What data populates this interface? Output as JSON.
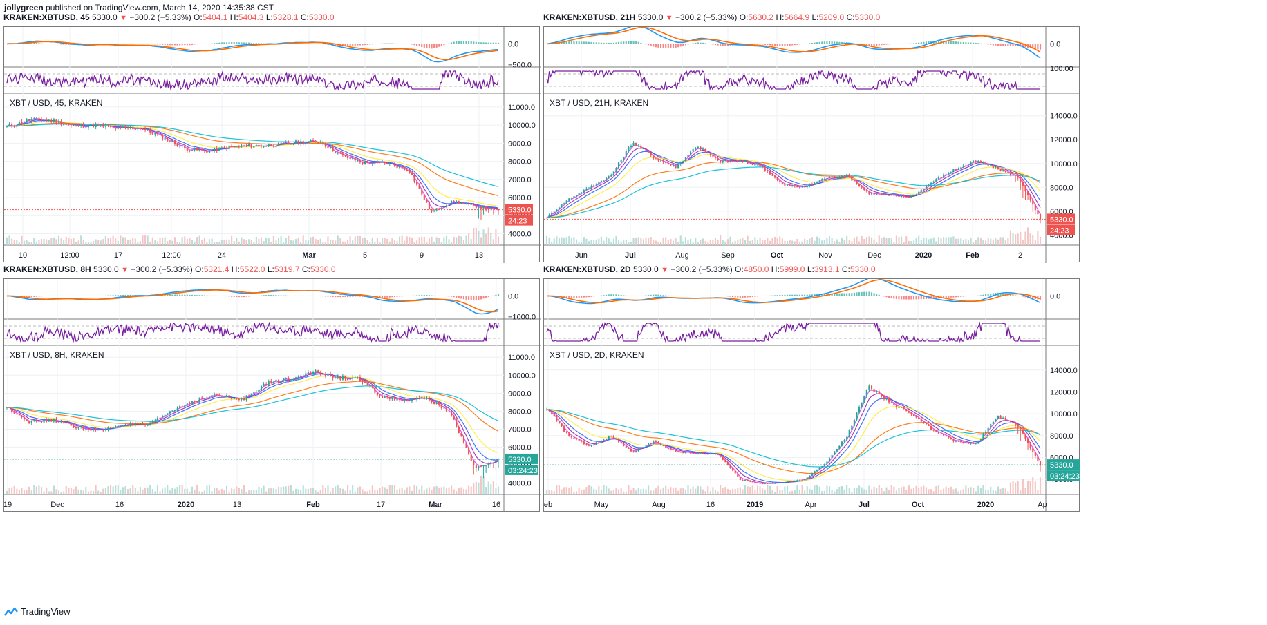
{
  "header": {
    "user": "jollygreen",
    "published": "published on TradingView.com, March 14, 2020 14:35:38 CST"
  },
  "footer": {
    "brand": "TradingView",
    "icon": "tradingview-logo-icon"
  },
  "colors": {
    "up": "#26a69a",
    "down": "#ef5350",
    "macd": "#2196f3",
    "signal": "#ff6d00",
    "rsi": "#7b1fa2",
    "ma_yellow": "#ffeb3b",
    "ma_orange": "#ff6d00",
    "ma_cyan": "#00bcd4",
    "ma_blue": "#2962ff",
    "ma_purple": "#9c27b0",
    "ma_pink": "#e040fb",
    "price_line_red": "#ef5350",
    "price_line_teal": "#26a69a"
  },
  "charts": [
    {
      "id": "tl",
      "legend": {
        "symbol": "KRAKEN:XBTUSD, 45",
        "last": "5330.0",
        "change": "−300.2 (−5.33%)",
        "o": "5404.1",
        "h": "5404.3",
        "l": "5328.1",
        "c": "5330.0"
      },
      "title": "XBT / USD, 45, KRAKEN",
      "macd_ticks": [
        "0.0",
        "−500.0"
      ],
      "price_ticks": [
        "11000.0",
        "10000.0",
        "9000.0",
        "8000.0",
        "7000.0",
        "6000.0",
        "5000.0",
        "4000.0"
      ],
      "x_ticks": [
        "10",
        "12:00",
        "17",
        "12:00",
        "24",
        "Mar",
        "5",
        "9",
        "13"
      ],
      "price_label": "5330.0",
      "countdown": "24:23"
    },
    {
      "id": "tr",
      "legend": {
        "symbol": "KRAKEN:XBTUSD, 21H",
        "last": "5330.0",
        "change": "−300.2 (−5.33%)",
        "o": "5630.2",
        "h": "5664.9",
        "l": "5209.0",
        "c": "5330.0"
      },
      "title": "XBT / USD, 21H, KRAKEN",
      "macd_ticks": [
        "0.0"
      ],
      "rsi_ticks": [
        "100.00"
      ],
      "price_ticks": [
        "14000.0",
        "12000.0",
        "10000.0",
        "8000.0",
        "6000.0",
        "4000.0"
      ],
      "x_ticks": [
        "Jun",
        "Jul",
        "Aug",
        "Sep",
        "Oct",
        "Nov",
        "Dec",
        "2020",
        "Feb",
        "2"
      ],
      "price_label": "5330.0",
      "countdown": "24:23"
    },
    {
      "id": "bl",
      "legend": {
        "symbol": "KRAKEN:XBTUSD, 8H",
        "last": "5330.0",
        "change": "−300.2 (−5.33%)",
        "o": "5321.4",
        "h": "5522.0",
        "l": "5319.7",
        "c": "5330.0"
      },
      "title": "XBT / USD, 8H, KRAKEN",
      "macd_ticks": [
        "0.0",
        "−1000.0"
      ],
      "price_ticks": [
        "11000.0",
        "10000.0",
        "9000.0",
        "8000.0",
        "7000.0",
        "6000.0",
        "5000.0",
        "4000.0"
      ],
      "x_ticks": [
        "19",
        "Dec",
        "16",
        "2020",
        "13",
        "Feb",
        "17",
        "Mar",
        "16"
      ],
      "price_label": "5330.0",
      "countdown": "03:24:23"
    },
    {
      "id": "br",
      "legend": {
        "symbol": "KRAKEN:XBTUSD, 2D",
        "last": "5330.0",
        "change": "−300.2 (−5.33%)",
        "o": "4850.0",
        "h": "5999.0",
        "l": "3913.1",
        "c": "5330.0"
      },
      "title": "XBT / USD, 2D, KRAKEN",
      "macd_ticks": [
        "0.0"
      ],
      "price_ticks": [
        "14000.0",
        "12000.0",
        "10000.0",
        "8000.0",
        "6000.0",
        "4000.0"
      ],
      "x_ticks": [
        "eb",
        "May",
        "Aug",
        "16",
        "2019",
        "Apr",
        "Jul",
        "Oct",
        "2020",
        "Ap"
      ],
      "price_label": "5330.0",
      "countdown": "03:24:23"
    }
  ],
  "chart_data": [
    {
      "type": "candlestick",
      "title": "XBT / USD, 45, KRAKEN",
      "interval": "45",
      "x_ticks": [
        "10",
        "12:00",
        "17",
        "12:00",
        "24",
        "Mar",
        "5",
        "9",
        "13"
      ],
      "close_path": [
        9900,
        10300,
        10250,
        9950,
        10000,
        9800,
        9850,
        9300,
        8700,
        8550,
        8800,
        8850,
        8900,
        9050,
        9100,
        8300,
        7900,
        7900,
        7500,
        5200,
        5800,
        5500,
        5330
      ],
      "ylim": [
        3600,
        11300
      ],
      "last": 5330.0,
      "indicators": [
        "MACD",
        "RSI",
        "Moving averages"
      ]
    },
    {
      "type": "candlestick",
      "title": "XBT / USD, 21H, KRAKEN",
      "interval": "21H",
      "x_ticks": [
        "Jun",
        "Jul",
        "Aug",
        "Sep",
        "Oct",
        "Nov",
        "Dec",
        "2020",
        "Feb",
        "2"
      ],
      "close_path": [
        5500,
        7000,
        8000,
        9000,
        11800,
        10500,
        9700,
        11500,
        10200,
        10200,
        9800,
        8200,
        8000,
        8800,
        9000,
        7500,
        7300,
        7200,
        8500,
        9500,
        10200,
        9600,
        8800,
        5300
      ],
      "ylim": [
        3500,
        15200
      ],
      "last": 5330.0,
      "indicators": [
        "MACD",
        "RSI",
        "Moving averages"
      ]
    },
    {
      "type": "candlestick",
      "title": "XBT / USD, 8H, KRAKEN",
      "interval": "8H",
      "x_ticks": [
        "19",
        "Dec",
        "16",
        "2020",
        "13",
        "Feb",
        "17",
        "Mar",
        "16"
      ],
      "close_path": [
        8200,
        7400,
        7500,
        7100,
        6900,
        7300,
        7200,
        8000,
        8600,
        8900,
        8600,
        9500,
        9800,
        10200,
        9900,
        9800,
        8800,
        8600,
        8700,
        7800,
        4800,
        5300
      ],
      "ylim": [
        3600,
        11200
      ],
      "last": 5330.0,
      "indicators": [
        "MACD",
        "RSI",
        "Moving averages"
      ]
    },
    {
      "type": "candlestick",
      "title": "XBT / USD, 2D, KRAKEN",
      "interval": "2D",
      "x_ticks": [
        "eb",
        "May",
        "Aug",
        "16",
        "2019",
        "Apr",
        "Jul",
        "Oct",
        "2020",
        "Ap"
      ],
      "close_path": [
        10500,
        8000,
        7000,
        8000,
        6500,
        7500,
        6500,
        6400,
        6300,
        4000,
        3600,
        3700,
        4000,
        5500,
        8000,
        12500,
        11000,
        10000,
        8500,
        7500,
        7200,
        9800,
        8800,
        5300
      ],
      "ylim": [
        3000,
        15500
      ],
      "last": 5330.0,
      "indicators": [
        "MACD",
        "RSI",
        "Moving averages"
      ]
    }
  ]
}
